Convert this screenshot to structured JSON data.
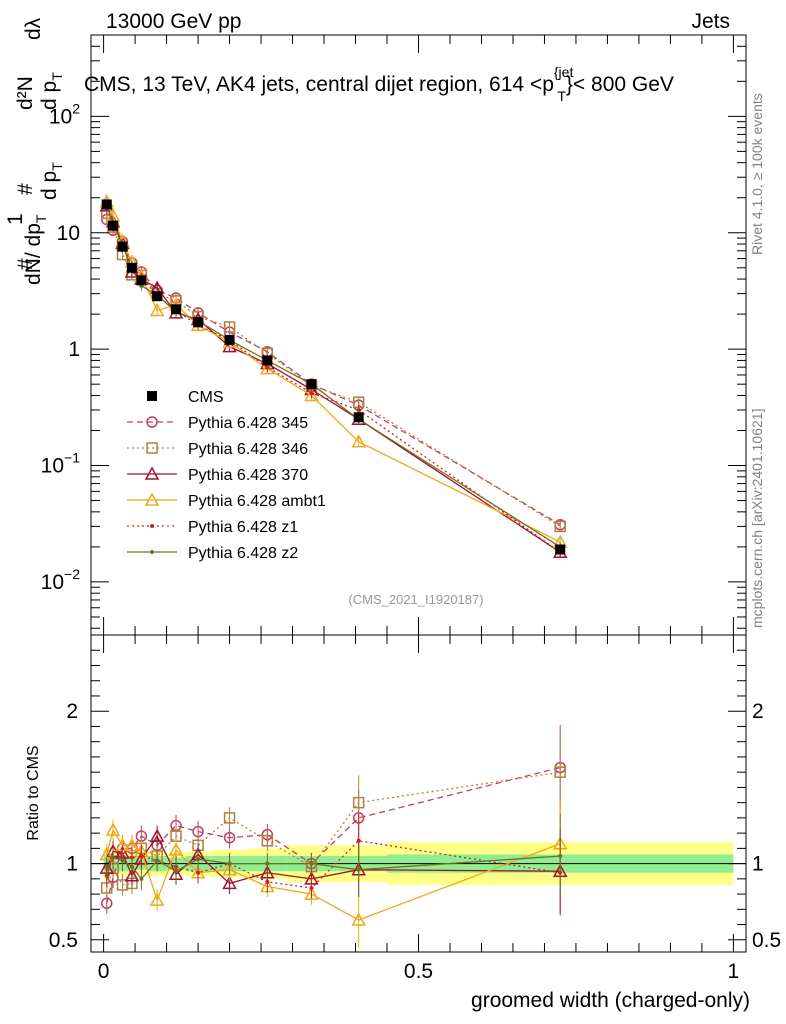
{
  "header": {
    "energy_label": "13000 GeV pp",
    "category_label": "Jets",
    "subtitle_main": "CMS, 13 TeV, AK4 jets, central dijet region, 614 <p",
    "subtitle_sup": "{jet",
    "subtitle_sub": "T",
    "subtitle_end": "}< 800 GeV"
  },
  "side_labels": {
    "rivet": "Rivet 4.1.0, ≥ 100k events",
    "mcplots": "mcplots.cern.ch [arXiv:2401.10621]"
  },
  "analysis_ref": "(CMS_2021_I1920187)",
  "colors": {
    "band_inner": "#90ee90",
    "band_outer": "#ffff88",
    "data": "#000000",
    "p345": "#c0405c",
    "p346": "#b08040",
    "p370": "#a01030",
    "ambt1": "#f0a818",
    "z1": "#d02020",
    "z2": "#707020"
  },
  "chart_data": [
    {
      "type": "line",
      "panel": "main",
      "yscale": "log",
      "ylabel": {
        "frac1_num": "#",
        "frac1_den": "dN/ dp",
        "frac1_sub": "T",
        "one": "1",
        "frac2_num": "#",
        "frac2_den": "d p",
        "frac2_sub": "T",
        "frac3_num": "d²N",
        "frac3_den": "d p",
        "frac3_sub": "T",
        "lambda": "dλ"
      },
      "xlim": [
        -0.02,
        1.02
      ],
      "ylim": [
        0.0035,
        500
      ],
      "yticks": [
        {
          "value": 0.01,
          "base": "10",
          "exp": "−2"
        },
        {
          "value": 0.1,
          "base": "10",
          "exp": "−1"
        },
        {
          "value": 1,
          "base": "1",
          "exp": ""
        },
        {
          "value": 10,
          "base": "10",
          "exp": ""
        },
        {
          "value": 100,
          "base": "10",
          "exp": "2"
        }
      ],
      "x": [
        0.005,
        0.015,
        0.03,
        0.045,
        0.06,
        0.085,
        0.115,
        0.15,
        0.2,
        0.26,
        0.33,
        0.405,
        0.725
      ],
      "series": [
        {
          "name": "CMS",
          "marker": "square",
          "values": [
            17.5,
            11.5,
            7.6,
            5.0,
            3.9,
            2.85,
            2.2,
            1.7,
            1.2,
            0.8,
            0.5,
            0.26,
            0.019
          ]
        },
        {
          "name": "Pythia 6.428 345",
          "marker": "circle",
          "dash": "dashed",
          "values": [
            13.0,
            10.5,
            8.4,
            5.5,
            4.6,
            3.2,
            2.75,
            2.05,
            1.4,
            0.95,
            0.5,
            0.33,
            0.031
          ]
        },
        {
          "name": "Pythia 6.428 346",
          "marker": "square-open",
          "dash": "dotted",
          "values": [
            14.7,
            11.2,
            6.5,
            4.35,
            4.3,
            3.0,
            2.6,
            1.9,
            1.55,
            0.92,
            0.49,
            0.35,
            0.03
          ]
        },
        {
          "name": "Pythia 6.428 370",
          "marker": "triangle-open",
          "dash": "solid",
          "values": [
            17.0,
            12.4,
            8.1,
            4.6,
            4.0,
            3.35,
            2.05,
            1.8,
            1.05,
            0.75,
            0.45,
            0.25,
            0.018
          ]
        },
        {
          "name": "Pythia 6.428 ambt1",
          "marker": "triangle-open",
          "dash": "solid",
          "values": [
            18.5,
            14.0,
            8.5,
            5.6,
            4.2,
            2.15,
            2.4,
            1.6,
            1.15,
            0.68,
            0.4,
            0.16,
            0.022
          ]
        },
        {
          "name": "Pythia 6.428 z1",
          "marker": "dot",
          "dash": "dotted",
          "values": [
            16.0,
            12.0,
            8.0,
            5.2,
            4.1,
            2.9,
            2.15,
            1.6,
            1.2,
            0.7,
            0.42,
            0.3,
            0.018
          ]
        },
        {
          "name": "Pythia 6.428 z2",
          "marker": "dot",
          "dash": "solid",
          "values": [
            17.0,
            12.0,
            7.8,
            4.9,
            3.5,
            2.9,
            2.1,
            1.75,
            1.2,
            0.8,
            0.5,
            0.25,
            0.02
          ]
        }
      ]
    },
    {
      "type": "line",
      "panel": "ratio",
      "ylabel": "Ratio to CMS",
      "xlabel": "groomed width (charged-only)",
      "xlim": [
        -0.02,
        1.02
      ],
      "ylim": [
        0.42,
        2.5
      ],
      "yticks": [
        0.5,
        1,
        2
      ],
      "ytick_labels": [
        "0.5",
        "1",
        "2"
      ],
      "xticks": [
        0,
        0.5,
        1
      ],
      "xtick_labels": [
        "0",
        "0.5",
        "1"
      ],
      "x": [
        0.005,
        0.015,
        0.03,
        0.045,
        0.06,
        0.085,
        0.115,
        0.15,
        0.2,
        0.26,
        0.33,
        0.405,
        0.725
      ],
      "band_edges": [
        0,
        0.01,
        0.02,
        0.04,
        0.05,
        0.07,
        0.1,
        0.13,
        0.17,
        0.23,
        0.29,
        0.37,
        0.45,
        1.0
      ],
      "band_inner": [
        0.06,
        0.05,
        0.05,
        0.04,
        0.04,
        0.05,
        0.04,
        0.05,
        0.05,
        0.05,
        0.05,
        0.05,
        0.06
      ],
      "band_outer": [
        0.1,
        0.08,
        0.08,
        0.07,
        0.07,
        0.08,
        0.07,
        0.08,
        0.09,
        0.1,
        0.12,
        0.12,
        0.14
      ],
      "series": [
        {
          "name": "Pythia 6.428 345",
          "values": [
            0.74,
            0.91,
            1.1,
            1.1,
            1.18,
            1.12,
            1.25,
            1.21,
            1.17,
            1.19,
            1.0,
            1.3,
            1.63
          ]
        },
        {
          "name": "Pythia 6.428 346",
          "values": [
            0.84,
            0.97,
            0.86,
            0.87,
            1.1,
            1.05,
            1.18,
            1.12,
            1.3,
            1.15,
            0.98,
            1.4,
            1.6
          ]
        },
        {
          "name": "Pythia 6.428 370",
          "values": [
            0.97,
            1.08,
            1.07,
            0.92,
            1.03,
            1.18,
            0.93,
            1.06,
            0.87,
            0.94,
            0.9,
            0.96,
            0.95
          ]
        },
        {
          "name": "Pythia 6.428 ambt1",
          "values": [
            1.06,
            1.22,
            1.12,
            1.12,
            1.08,
            0.76,
            1.09,
            0.94,
            0.96,
            0.85,
            0.8,
            0.63,
            1.13
          ]
        },
        {
          "name": "Pythia 6.428 z1",
          "values": [
            0.92,
            1.04,
            1.05,
            1.04,
            1.05,
            1.02,
            0.98,
            0.94,
            1.0,
            0.88,
            0.84,
            1.15,
            0.94
          ]
        },
        {
          "name": "Pythia 6.428 z2",
          "values": [
            0.97,
            1.04,
            1.02,
            0.98,
            0.9,
            1.02,
            0.95,
            1.03,
            1.0,
            1.0,
            1.0,
            0.96,
            1.05
          ]
        }
      ]
    }
  ]
}
